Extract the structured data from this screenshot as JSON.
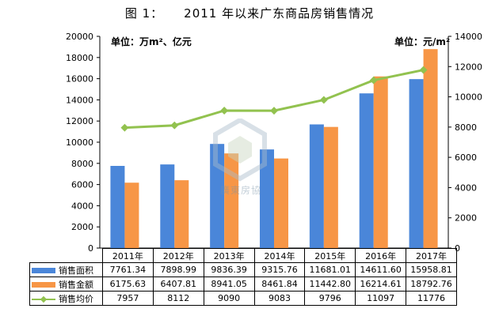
{
  "title": {
    "label": "图 1：",
    "text": "2011 年以来广东商品房销售情况"
  },
  "units": {
    "left": "单位：万m²、亿元",
    "right": "单位：元/m²"
  },
  "watermark": "廣東房協",
  "colors": {
    "area": "#4a86d9",
    "amount": "#f79646",
    "price": "#92c24f"
  },
  "chart_data": {
    "type": "bar",
    "categories": [
      "2011年",
      "2012年",
      "2013年",
      "2014年",
      "2015年",
      "2016年",
      "2017年"
    ],
    "series": [
      {
        "name": "销售面积",
        "kind": "bar",
        "axis": "left",
        "values": [
          7761.34,
          7898.99,
          9836.39,
          9315.76,
          11681.01,
          14611.6,
          15958.81
        ],
        "display": [
          "7761.34",
          "7898.99",
          "9836.39",
          "9315.76",
          "11681.01",
          "14611.60",
          "15958.81"
        ]
      },
      {
        "name": "销售金额",
        "kind": "bar",
        "axis": "left",
        "values": [
          6175.63,
          6407.81,
          8941.05,
          8461.84,
          11442.8,
          16214.61,
          18792.76
        ],
        "display": [
          "6175.63",
          "6407.81",
          "8941.05",
          "8461.84",
          "11442.80",
          "16214.61",
          "18792.76"
        ]
      },
      {
        "name": "销售均价",
        "kind": "line",
        "axis": "right",
        "values": [
          7957,
          8112,
          9090,
          9083,
          9796,
          11097,
          11776
        ],
        "display": [
          "7957",
          "8112",
          "9090",
          "9083",
          "9796",
          "11097",
          "11776"
        ]
      }
    ],
    "left_axis": {
      "min": 0,
      "max": 20000,
      "ticks": [
        "0",
        "2000",
        "4000",
        "6000",
        "8000",
        "10000",
        "12000",
        "14000",
        "16000",
        "18000",
        "20000"
      ]
    },
    "right_axis": {
      "min": 0,
      "max": 14000,
      "ticks": [
        "0",
        "2000",
        "4000",
        "6000",
        "8000",
        "10000",
        "12000",
        "14000"
      ]
    },
    "grid": false,
    "legend": "data-table"
  }
}
